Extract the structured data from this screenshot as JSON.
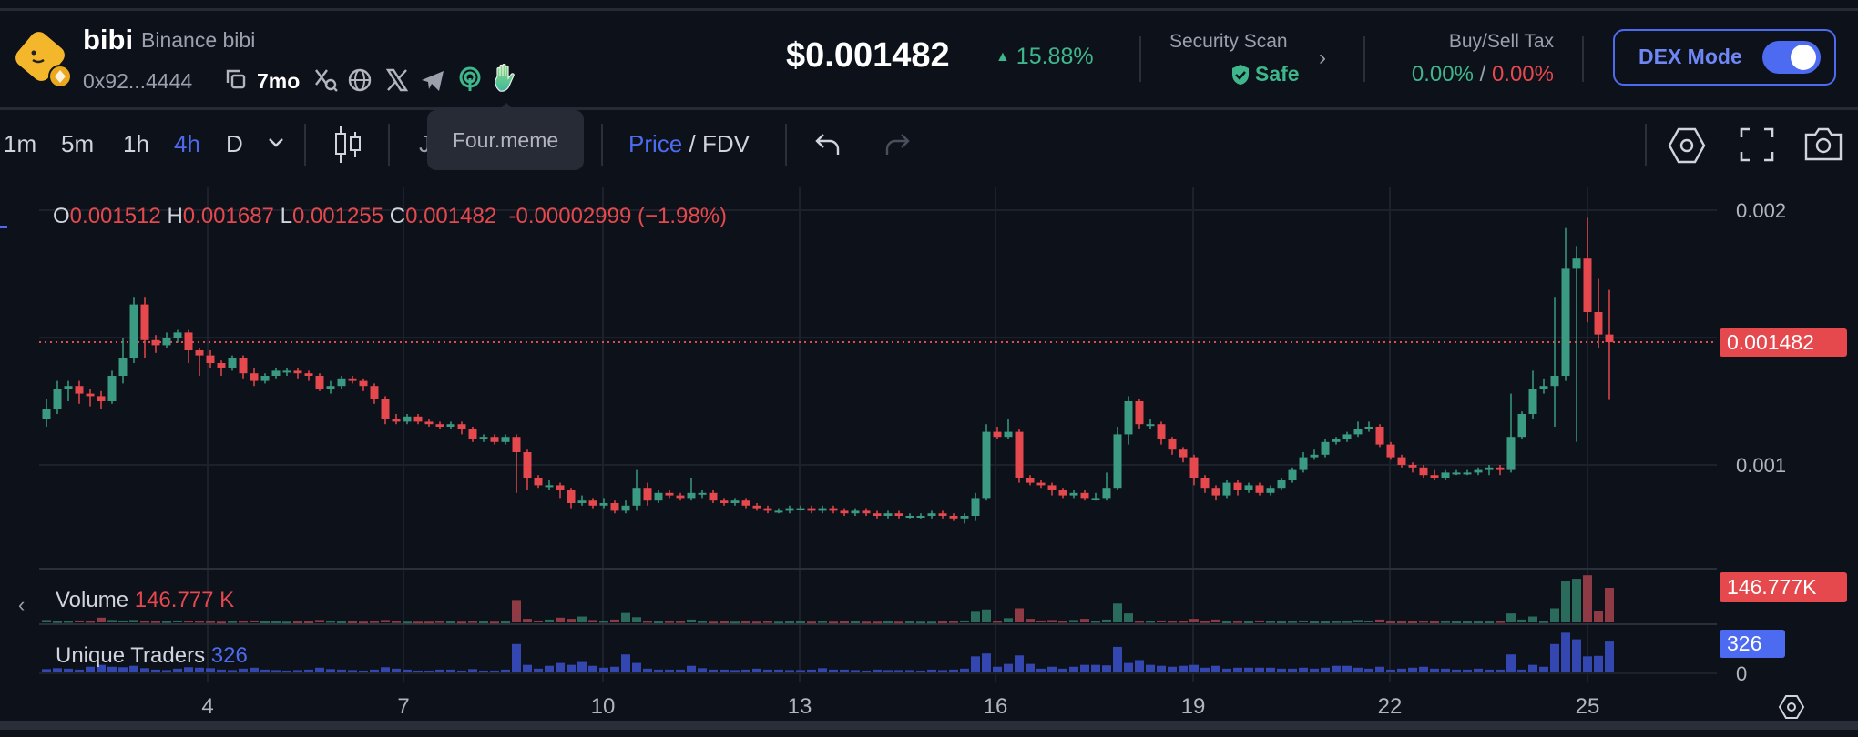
{
  "token": {
    "symbol": "bibi",
    "name": "Binance bibi",
    "address": "0x92...4444",
    "age": "7mo",
    "price": "$0.001482",
    "change": "15.88%",
    "link_icons": [
      "search-x-icon",
      "globe-icon",
      "x-twitter-icon",
      "telegram-icon",
      "signal-icon",
      "four-meme-hand-icon"
    ]
  },
  "tooltip": {
    "text": "Four.meme"
  },
  "security": {
    "label": "Security Scan",
    "status": "Safe"
  },
  "tax": {
    "label": "Buy/Sell Tax",
    "buy": "0.00%",
    "separator": "/",
    "sell": "0.00%"
  },
  "dex_mode": {
    "label": "DEX Mode",
    "enabled": true
  },
  "toolbar": {
    "timeframes": [
      "1m",
      "5m",
      "1h",
      "4h",
      "D"
    ],
    "active_timeframe": "4h",
    "partial_label": "J",
    "price_label": "Price",
    "separator": "/",
    "fdv_label": "FDV"
  },
  "legend": {
    "o_label": "O",
    "o": "0.001512",
    "h_label": "H",
    "h": "0.001687",
    "l_label": "L",
    "l": "0.001255",
    "c_label": "C",
    "c": "0.001482",
    "change": "-0.00002999 (−1.98%)"
  },
  "volume": {
    "label": "Volume",
    "value": "146.777 K",
    "tag": "146.777K"
  },
  "traders": {
    "label": "Unique Traders",
    "value": "326",
    "tag": "326",
    "zero": "0"
  },
  "colors": {
    "up": "#3a9b82",
    "down": "#e5484d",
    "accent": "#4d6bf0",
    "traders": "#3447b0",
    "background": "#0d111a"
  },
  "chart_data": {
    "type": "candlestick",
    "interval": "4h",
    "y_ticks": [
      "0.002",
      "0.001"
    ],
    "last_price": "0.001482",
    "x_ticks": [
      "4",
      "7",
      "10",
      "13",
      "16",
      "19",
      "22",
      "25"
    ],
    "ylim": [
      0.00063,
      0.00212
    ],
    "candles_ohlc": [
      [
        0.00118,
        0.00126,
        0.00115,
        0.00122
      ],
      [
        0.00122,
        0.00133,
        0.0012,
        0.0013
      ],
      [
        0.0013,
        0.00133,
        0.00125,
        0.00131
      ],
      [
        0.00131,
        0.00133,
        0.00124,
        0.00128
      ],
      [
        0.00128,
        0.0013,
        0.00123,
        0.00127
      ],
      [
        0.00127,
        0.00129,
        0.00122,
        0.00125
      ],
      [
        0.00125,
        0.00137,
        0.00124,
        0.00135
      ],
      [
        0.00135,
        0.0015,
        0.00132,
        0.00142
      ],
      [
        0.00142,
        0.00166,
        0.0014,
        0.00163
      ],
      [
        0.00163,
        0.00166,
        0.00142,
        0.00149
      ],
      [
        0.00149,
        0.00151,
        0.00144,
        0.00147
      ],
      [
        0.00147,
        0.00152,
        0.00146,
        0.0015
      ],
      [
        0.0015,
        0.00153,
        0.00148,
        0.00152
      ],
      [
        0.00152,
        0.00153,
        0.0014,
        0.00145
      ],
      [
        0.00145,
        0.00146,
        0.00135,
        0.00143
      ],
      [
        0.00143,
        0.00145,
        0.00138,
        0.0014
      ],
      [
        0.0014,
        0.00141,
        0.00135,
        0.00138
      ],
      [
        0.00138,
        0.00143,
        0.00137,
        0.00142
      ],
      [
        0.00142,
        0.00143,
        0.00134,
        0.00136
      ],
      [
        0.00136,
        0.00138,
        0.00131,
        0.00133
      ],
      [
        0.00133,
        0.00136,
        0.00132,
        0.00135
      ],
      [
        0.00135,
        0.00138,
        0.00134,
        0.00137
      ],
      [
        0.00137,
        0.00138,
        0.00135,
        0.00137
      ],
      [
        0.00137,
        0.00138,
        0.00134,
        0.00136
      ],
      [
        0.00136,
        0.00137,
        0.00133,
        0.00135
      ],
      [
        0.00135,
        0.00136,
        0.00129,
        0.0013
      ],
      [
        0.0013,
        0.00133,
        0.00128,
        0.00131
      ],
      [
        0.00131,
        0.00135,
        0.0013,
        0.00134
      ],
      [
        0.00134,
        0.00135,
        0.00132,
        0.00133
      ],
      [
        0.00133,
        0.00134,
        0.00129,
        0.00131
      ],
      [
        0.00131,
        0.00132,
        0.00124,
        0.00126
      ],
      [
        0.00126,
        0.00127,
        0.00116,
        0.00118
      ],
      [
        0.00118,
        0.0012,
        0.00116,
        0.00117
      ],
      [
        0.00117,
        0.0012,
        0.00116,
        0.00119
      ],
      [
        0.00119,
        0.0012,
        0.00116,
        0.00117
      ],
      [
        0.00117,
        0.00118,
        0.00115,
        0.00116
      ],
      [
        0.00116,
        0.00117,
        0.00114,
        0.00115
      ],
      [
        0.00115,
        0.00117,
        0.00114,
        0.00116
      ],
      [
        0.00116,
        0.00117,
        0.00112,
        0.00114
      ],
      [
        0.00114,
        0.00115,
        0.00109,
        0.0011
      ],
      [
        0.0011,
        0.00112,
        0.00109,
        0.00111
      ],
      [
        0.00111,
        0.00112,
        0.00108,
        0.00109
      ],
      [
        0.00109,
        0.00112,
        0.00108,
        0.00111
      ],
      [
        0.00111,
        0.00112,
        0.00089,
        0.00105
      ],
      [
        0.00105,
        0.00106,
        0.0009,
        0.00095
      ],
      [
        0.00095,
        0.00096,
        0.00091,
        0.00092
      ],
      [
        0.00092,
        0.00094,
        0.0009,
        0.00092
      ],
      [
        0.00092,
        0.00093,
        0.00087,
        0.0009
      ],
      [
        0.0009,
        0.00091,
        0.00083,
        0.00085
      ],
      [
        0.00085,
        0.00088,
        0.00084,
        0.00086
      ],
      [
        0.00086,
        0.00087,
        0.00083,
        0.00084
      ],
      [
        0.00084,
        0.00087,
        0.00083,
        0.00085
      ],
      [
        0.00085,
        0.00086,
        0.00081,
        0.00082
      ],
      [
        0.00082,
        0.00086,
        0.00081,
        0.00084
      ],
      [
        0.00084,
        0.00098,
        0.00082,
        0.00091
      ],
      [
        0.00091,
        0.00093,
        0.00084,
        0.00086
      ],
      [
        0.00086,
        0.0009,
        0.00085,
        0.00089
      ],
      [
        0.00089,
        0.0009,
        0.00087,
        0.00088
      ],
      [
        0.00088,
        0.00089,
        0.00086,
        0.00087
      ],
      [
        0.00087,
        0.00095,
        0.00086,
        0.00089
      ],
      [
        0.00089,
        0.0009,
        0.00087,
        0.00089
      ],
      [
        0.00089,
        0.0009,
        0.00085,
        0.00086
      ],
      [
        0.00086,
        0.00087,
        0.00084,
        0.00085
      ],
      [
        0.00085,
        0.00087,
        0.00084,
        0.00086
      ],
      [
        0.00086,
        0.00087,
        0.00083,
        0.00084
      ],
      [
        0.00084,
        0.00085,
        0.00082,
        0.00083
      ],
      [
        0.00083,
        0.00084,
        0.00081,
        0.00082
      ],
      [
        0.00082,
        0.00083,
        0.00081,
        0.00082
      ],
      [
        0.00082,
        0.00084,
        0.00081,
        0.00083
      ],
      [
        0.00083,
        0.00084,
        0.00082,
        0.00083
      ],
      [
        0.00083,
        0.00084,
        0.00081,
        0.00082
      ],
      [
        0.00082,
        0.00084,
        0.00081,
        0.00083
      ],
      [
        0.00083,
        0.00084,
        0.00081,
        0.00082
      ],
      [
        0.00082,
        0.00083,
        0.0008,
        0.00081
      ],
      [
        0.00081,
        0.00083,
        0.0008,
        0.00082
      ],
      [
        0.00082,
        0.00083,
        0.0008,
        0.00081
      ],
      [
        0.00081,
        0.00082,
        0.00079,
        0.0008
      ],
      [
        0.0008,
        0.00082,
        0.00079,
        0.00081
      ],
      [
        0.00081,
        0.00082,
        0.00079,
        0.0008
      ],
      [
        0.0008,
        0.00081,
        0.00079,
        0.0008
      ],
      [
        0.0008,
        0.00081,
        0.00079,
        0.0008
      ],
      [
        0.0008,
        0.00082,
        0.00079,
        0.00081
      ],
      [
        0.00081,
        0.00082,
        0.00079,
        0.0008
      ],
      [
        0.0008,
        0.00081,
        0.00078,
        0.00079
      ],
      [
        0.00079,
        0.00081,
        0.00077,
        0.0008
      ],
      [
        0.0008,
        0.00089,
        0.00078,
        0.00087
      ],
      [
        0.00087,
        0.00116,
        0.00086,
        0.00113
      ],
      [
        0.00113,
        0.00115,
        0.0011,
        0.00111
      ],
      [
        0.00111,
        0.00118,
        0.0011,
        0.00113
      ],
      [
        0.00113,
        0.00114,
        0.00093,
        0.00095
      ],
      [
        0.00095,
        0.00096,
        0.00092,
        0.00093
      ],
      [
        0.00093,
        0.00094,
        0.00091,
        0.00092
      ],
      [
        0.00092,
        0.00093,
        0.00088,
        0.0009
      ],
      [
        0.0009,
        0.00091,
        0.00087,
        0.00088
      ],
      [
        0.00088,
        0.0009,
        0.00087,
        0.00089
      ],
      [
        0.00089,
        0.0009,
        0.00086,
        0.00087
      ],
      [
        0.00087,
        0.00089,
        0.00086,
        0.00087
      ],
      [
        0.00087,
        0.00097,
        0.00086,
        0.00091
      ],
      [
        0.00091,
        0.00115,
        0.0009,
        0.00112
      ],
      [
        0.00112,
        0.00127,
        0.00108,
        0.00125
      ],
      [
        0.00125,
        0.00126,
        0.00114,
        0.00116
      ],
      [
        0.00116,
        0.00118,
        0.00114,
        0.00116
      ],
      [
        0.00116,
        0.00117,
        0.00108,
        0.0011
      ],
      [
        0.0011,
        0.00111,
        0.00104,
        0.00106
      ],
      [
        0.00106,
        0.00107,
        0.00101,
        0.00103
      ],
      [
        0.00103,
        0.00104,
        0.00092,
        0.00095
      ],
      [
        0.00095,
        0.00096,
        0.00089,
        0.00091
      ],
      [
        0.00091,
        0.00092,
        0.00086,
        0.00088
      ],
      [
        0.00088,
        0.00094,
        0.00087,
        0.00093
      ],
      [
        0.00093,
        0.00094,
        0.00088,
        0.0009
      ],
      [
        0.0009,
        0.00093,
        0.00089,
        0.00092
      ],
      [
        0.00092,
        0.00093,
        0.00088,
        0.00089
      ],
      [
        0.00089,
        0.00092,
        0.00088,
        0.00091
      ],
      [
        0.00091,
        0.00095,
        0.0009,
        0.00094
      ],
      [
        0.00094,
        0.00099,
        0.00093,
        0.00098
      ],
      [
        0.00098,
        0.00105,
        0.00097,
        0.00103
      ],
      [
        0.00103,
        0.00106,
        0.00102,
        0.00104
      ],
      [
        0.00104,
        0.0011,
        0.00103,
        0.00109
      ],
      [
        0.00109,
        0.00111,
        0.00108,
        0.0011
      ],
      [
        0.0011,
        0.00113,
        0.00109,
        0.00112
      ],
      [
        0.00112,
        0.00117,
        0.00111,
        0.00114
      ],
      [
        0.00114,
        0.00117,
        0.00113,
        0.00115
      ],
      [
        0.00115,
        0.00116,
        0.00107,
        0.00108
      ],
      [
        0.00108,
        0.00109,
        0.00102,
        0.00103
      ],
      [
        0.00103,
        0.00104,
        0.00099,
        0.001
      ],
      [
        0.001,
        0.00101,
        0.00097,
        0.00099
      ],
      [
        0.00099,
        0.001,
        0.00095,
        0.00096
      ],
      [
        0.00096,
        0.00098,
        0.00094,
        0.00095
      ],
      [
        0.00095,
        0.00098,
        0.00094,
        0.00097
      ],
      [
        0.00097,
        0.00098,
        0.00096,
        0.00097
      ],
      [
        0.00097,
        0.00098,
        0.00096,
        0.00097
      ],
      [
        0.00097,
        0.00099,
        0.00096,
        0.00098
      ],
      [
        0.00098,
        0.001,
        0.00096,
        0.00099
      ],
      [
        0.00099,
        0.001,
        0.00096,
        0.00098
      ],
      [
        0.00098,
        0.00128,
        0.00097,
        0.00111
      ],
      [
        0.00111,
        0.00121,
        0.0011,
        0.0012
      ],
      [
        0.0012,
        0.00137,
        0.00118,
        0.0013
      ],
      [
        0.0013,
        0.00134,
        0.00128,
        0.00131
      ],
      [
        0.00131,
        0.00166,
        0.00115,
        0.00135
      ],
      [
        0.00135,
        0.00193,
        0.00133,
        0.00177
      ],
      [
        0.00177,
        0.00186,
        0.00109,
        0.00181
      ],
      [
        0.00181,
        0.00197,
        0.00156,
        0.0016
      ],
      [
        0.0016,
        0.00173,
        0.00146,
        0.001512
      ],
      [
        0.001512,
        0.001687,
        0.001255,
        0.001482
      ]
    ],
    "volume_k": [
      10,
      5,
      6,
      8,
      6,
      20,
      10,
      8,
      10,
      6,
      5,
      5,
      8,
      7,
      6,
      5,
      3,
      5,
      6,
      8,
      4,
      4,
      3,
      4,
      4,
      10,
      6,
      4,
      4,
      3,
      5,
      10,
      5,
      3,
      3,
      3,
      5,
      4,
      3,
      5,
      4,
      3,
      4,
      95,
      15,
      8,
      12,
      20,
      15,
      25,
      10,
      6,
      12,
      40,
      22,
      6,
      4,
      5,
      5,
      12,
      5,
      3,
      4,
      3,
      4,
      3,
      5,
      3,
      4,
      4,
      3,
      5,
      3,
      4,
      4,
      3,
      3,
      4,
      3,
      4,
      3,
      3,
      4,
      5,
      8,
      45,
      55,
      6,
      18,
      60,
      15,
      8,
      10,
      6,
      10,
      15,
      6,
      12,
      80,
      38,
      6,
      6,
      8,
      6,
      6,
      15,
      5,
      12,
      4,
      5,
      4,
      8,
      5,
      4,
      5,
      8,
      4,
      4,
      5,
      5,
      10,
      8,
      12,
      4,
      4,
      4,
      6,
      4,
      5,
      4,
      4,
      4,
      4,
      5,
      38,
      12,
      25,
      5,
      60,
      175,
      185,
      200,
      50,
      146.777
    ],
    "unique_traders": [
      35,
      45,
      40,
      30,
      60,
      80,
      60,
      55,
      70,
      45,
      30,
      25,
      40,
      55,
      50,
      45,
      30,
      25,
      40,
      50,
      30,
      25,
      20,
      25,
      30,
      50,
      35,
      30,
      25,
      20,
      30,
      55,
      40,
      30,
      20,
      20,
      30,
      30,
      20,
      35,
      20,
      20,
      30,
      300,
      80,
      40,
      70,
      100,
      80,
      110,
      70,
      50,
      60,
      190,
      100,
      40,
      30,
      30,
      30,
      70,
      45,
      30,
      30,
      25,
      30,
      40,
      30,
      30,
      25,
      25,
      30,
      45,
      30,
      30,
      25,
      20,
      30,
      25,
      25,
      25,
      20,
      30,
      25,
      30,
      40,
      170,
      200,
      60,
      90,
      180,
      90,
      40,
      60,
      40,
      60,
      80,
      80,
      75,
      270,
      100,
      130,
      80,
      70,
      60,
      70,
      80,
      50,
      70,
      40,
      50,
      50,
      50,
      50,
      40,
      40,
      50,
      40,
      50,
      70,
      70,
      50,
      40,
      60,
      30,
      40,
      50,
      60,
      40,
      40,
      30,
      30,
      40,
      30,
      30,
      190,
      30,
      80,
      60,
      300,
      420,
      350,
      170,
      175,
      326
    ]
  }
}
